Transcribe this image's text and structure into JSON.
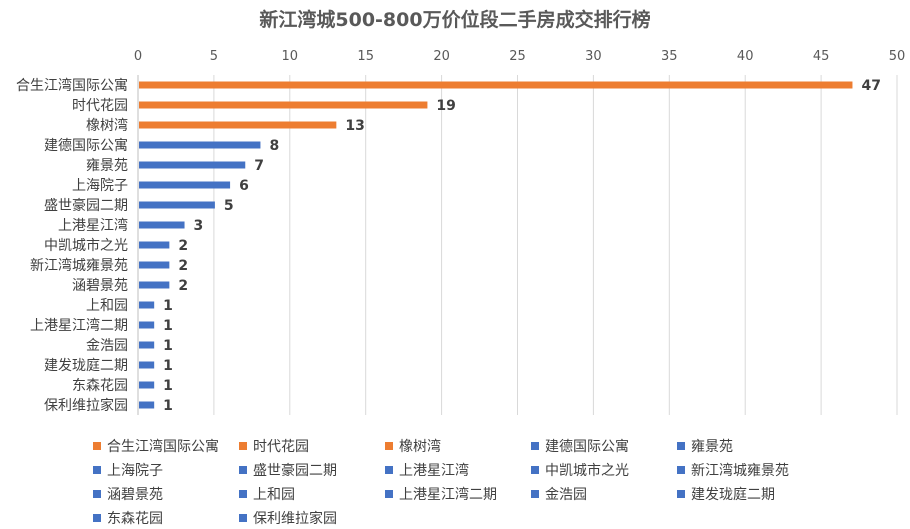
{
  "chart_data": {
    "type": "bar",
    "orientation": "horizontal",
    "title": "新江湾城500-800万价位段二手房成交排行榜",
    "xlim": [
      0,
      50
    ],
    "x_ticks": [
      0,
      5,
      10,
      15,
      20,
      25,
      30,
      35,
      40,
      45,
      50
    ],
    "xlabel": "",
    "ylabel": "",
    "grid": "vertical gridlines",
    "x_axis_position": "top",
    "legend_position": "bottom",
    "categories": [
      "合生江湾国际公寓",
      "时代花园",
      "橡树湾",
      "建德国际公寓",
      "雍景苑",
      "上海院子",
      "盛世豪园二期",
      "上港星江湾",
      "中凯城市之光",
      "新江湾城雍景苑",
      "涵碧景苑",
      "上和园",
      "上港星江湾二期",
      "金浩园",
      "建发珑庭二期",
      "东森花园",
      "保利维拉家园"
    ],
    "values": [
      47,
      19,
      13,
      8,
      7,
      6,
      5,
      3,
      2,
      2,
      2,
      1,
      1,
      1,
      1,
      1,
      1
    ],
    "colors": [
      "#ED7D31",
      "#ED7D31",
      "#ED7D31",
      "#4472C4",
      "#4472C4",
      "#4472C4",
      "#4472C4",
      "#4472C4",
      "#4472C4",
      "#4472C4",
      "#4472C4",
      "#4472C4",
      "#4472C4",
      "#4472C4",
      "#4472C4",
      "#4472C4",
      "#4472C4"
    ]
  }
}
